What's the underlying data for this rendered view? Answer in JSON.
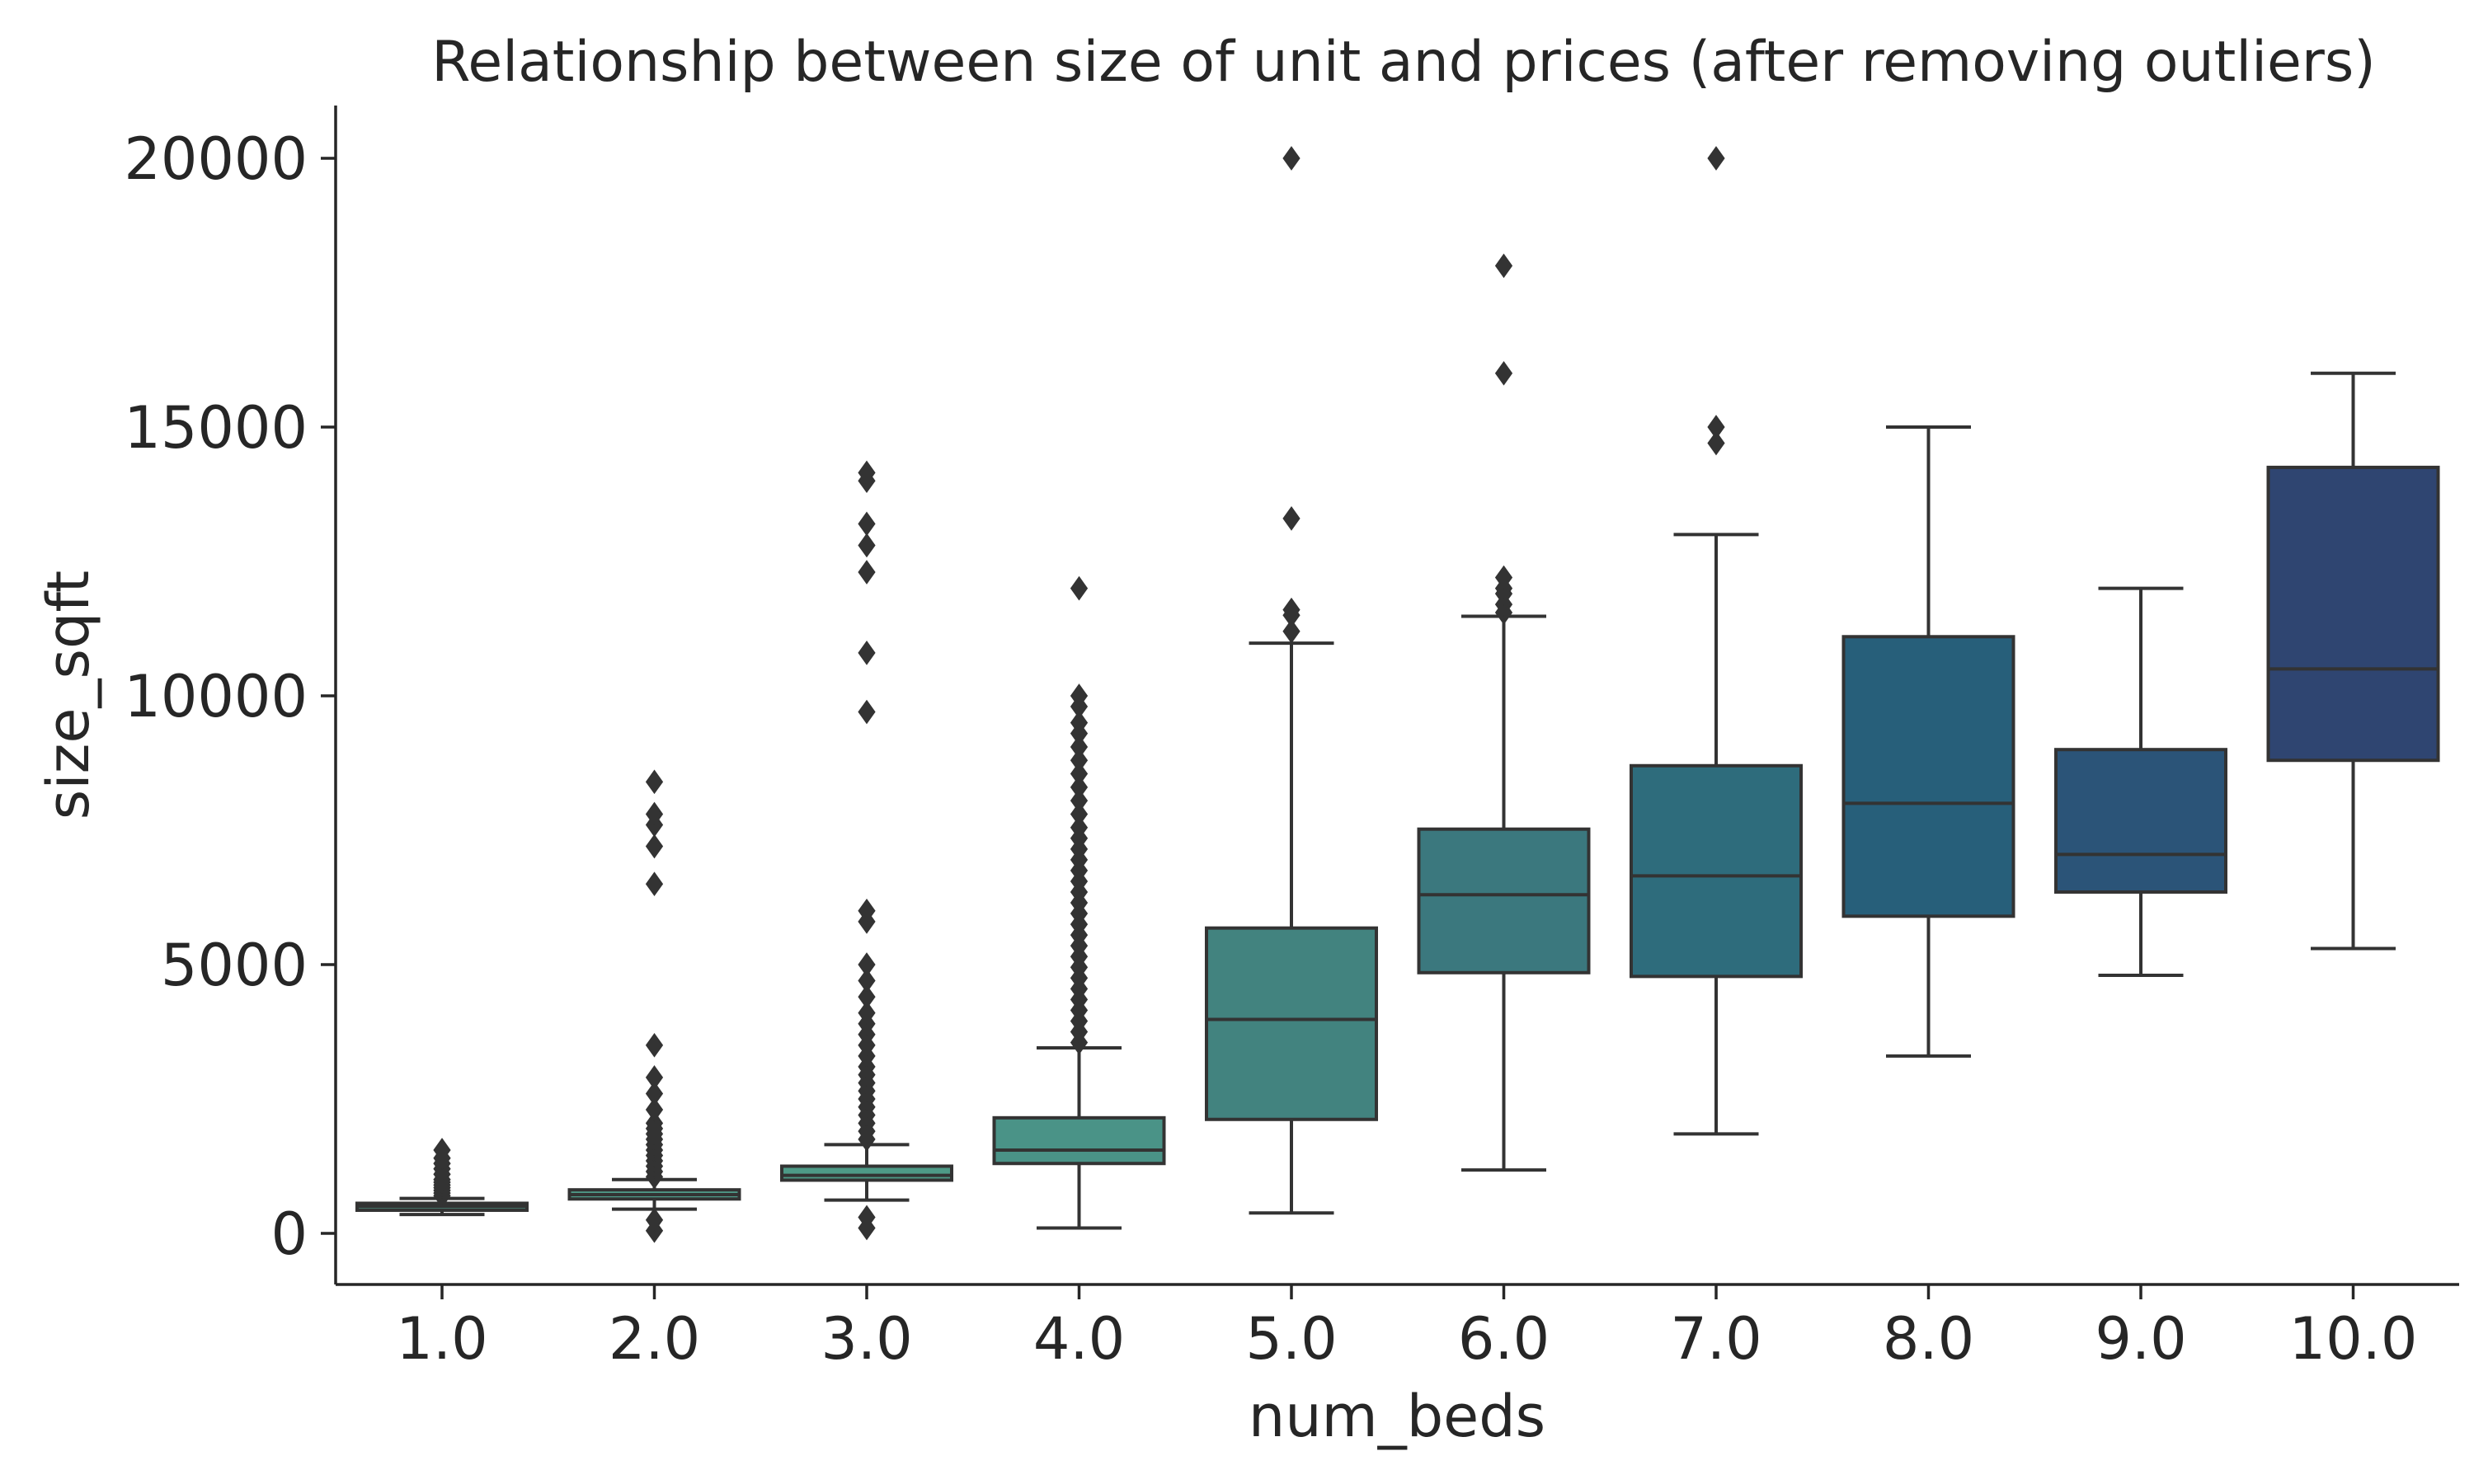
{
  "chart_data": {
    "type": "box",
    "title": "Relationship between size of unit and prices (after removing outliers)",
    "xlabel": "num_beds",
    "ylabel": "size_sqft",
    "categories": [
      "1.0",
      "2.0",
      "3.0",
      "4.0",
      "5.0",
      "6.0",
      "7.0",
      "8.0",
      "9.0",
      "10.0"
    ],
    "yticks": [
      0,
      5000,
      10000,
      15000,
      20000
    ],
    "ytick_labels": [
      "0",
      "5000",
      "10000",
      "15000",
      "20000"
    ],
    "ylim": [
      -900,
      21000
    ],
    "grid": false,
    "boxes": [
      {
        "category": "1.0",
        "color": "#4f9a88",
        "whislo": 350,
        "q1": 430,
        "median": 500,
        "q3": 560,
        "whishi": 650,
        "fliers": [
          700,
          750,
          800,
          850,
          900,
          950,
          1000,
          1100,
          1200,
          1300,
          1400,
          1550
        ]
      },
      {
        "category": "2.0",
        "color": "#4f9a88",
        "whislo": 450,
        "q1": 640,
        "median": 720,
        "q3": 810,
        "whishi": 1000,
        "fliers": [
          50,
          250,
          1050,
          1150,
          1250,
          1350,
          1450,
          1550,
          1650,
          1750,
          1850,
          1950,
          2050,
          2300,
          2600,
          2900,
          3500,
          6500,
          7200,
          7600,
          7800,
          8400
        ]
      },
      {
        "category": "3.0",
        "color": "#4e9a87",
        "whislo": 620,
        "q1": 990,
        "median": 1080,
        "q3": 1250,
        "whishi": 1650,
        "fliers": [
          100,
          300,
          1750,
          1900,
          2050,
          2200,
          2350,
          2500,
          2650,
          2800,
          2950,
          3100,
          3300,
          3500,
          3700,
          3900,
          4100,
          4400,
          4700,
          5000,
          5800,
          6000,
          9700,
          10800,
          12300,
          12800,
          13200,
          14000,
          14150
        ]
      },
      {
        "category": "4.0",
        "color": "#4a9387",
        "whislo": 100,
        "q1": 1300,
        "median": 1550,
        "q3": 2150,
        "whishi": 3450,
        "fliers": [
          3550,
          3750,
          3950,
          4150,
          4350,
          4550,
          4750,
          4950,
          5150,
          5350,
          5550,
          5750,
          5950,
          6150,
          6350,
          6550,
          6750,
          6950,
          7150,
          7350,
          7550,
          7800,
          8050,
          8300,
          8550,
          8800,
          9050,
          9300,
          9500,
          9800,
          10000,
          12000
        ]
      },
      {
        "category": "5.0",
        "color": "#42837f",
        "whislo": 380,
        "q1": 2120,
        "median": 3980,
        "q3": 5680,
        "whishi": 10980,
        "fliers": [
          11200,
          11500,
          11600,
          13300,
          20000
        ]
      },
      {
        "category": "6.0",
        "color": "#3b787e",
        "whislo": 1180,
        "q1": 4850,
        "median": 6300,
        "q3": 7520,
        "whishi": 11480,
        "fliers": [
          11550,
          11700,
          11900,
          12000,
          12200,
          16000,
          18000
        ]
      },
      {
        "category": "7.0",
        "color": "#2e6c7c",
        "whislo": 1850,
        "q1": 4780,
        "median": 6650,
        "q3": 8700,
        "whishi": 13000,
        "fliers": [
          14700,
          15000,
          20000
        ]
      },
      {
        "category": "8.0",
        "color": "#275f7a",
        "whislo": 3300,
        "q1": 5900,
        "median": 8000,
        "q3": 11100,
        "whishi": 15000,
        "fliers": []
      },
      {
        "category": "9.0",
        "color": "#2b5478",
        "whislo": 4800,
        "q1": 6350,
        "median": 7050,
        "q3": 9000,
        "whishi": 12000,
        "fliers": []
      },
      {
        "category": "10.0",
        "color": "#2f4571",
        "whislo": 5300,
        "q1": 8800,
        "median": 10500,
        "q3": 14250,
        "whishi": 16000,
        "fliers": []
      }
    ]
  }
}
